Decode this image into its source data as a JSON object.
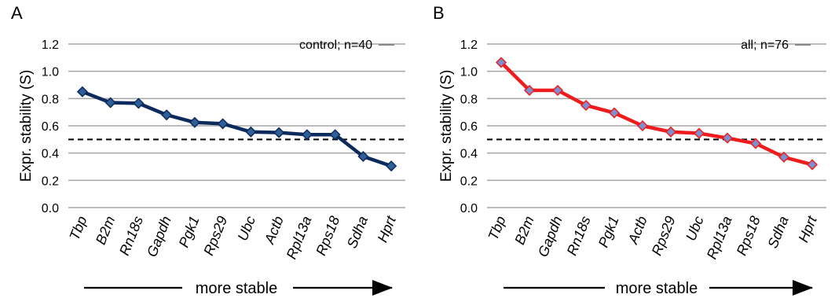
{
  "chart_data": [
    {
      "panel": "A",
      "type": "line",
      "ylabel": "Expr. stability (S)",
      "ylim": [
        0,
        1.2
      ],
      "yticks": [
        "0.0",
        "0.2",
        "0.4",
        "0.6",
        "0.8",
        "1.0",
        "1.2"
      ],
      "grid": true,
      "legend_text": "control; n=40",
      "legend_position": "top-right",
      "threshold": 0.5,
      "categories": [
        "Tbp",
        "B2m",
        "Rn18s",
        "Gapdh",
        "Pgk1",
        "Rps29",
        "Ubc",
        "Actb",
        "Rpl13a",
        "Rps18",
        "Sdha",
        "Hprt"
      ],
      "series": [
        {
          "values": [
            0.85,
            0.77,
            0.765,
            0.68,
            0.625,
            0.615,
            0.555,
            0.55,
            0.535,
            0.535,
            0.375,
            0.305
          ]
        }
      ],
      "line_color": "#0d2a5c",
      "marker_fill": "#2f5f97",
      "arrow_label": "more stable"
    },
    {
      "panel": "B",
      "type": "line",
      "ylabel": "Expr. stability (S)",
      "ylim": [
        0,
        1.2
      ],
      "yticks": [
        "0.0",
        "0.2",
        "0.4",
        "0.6",
        "0.8",
        "1.0",
        "1.2"
      ],
      "grid": true,
      "legend_text": "all; n=76",
      "legend_position": "top-right",
      "threshold": 0.5,
      "categories": [
        "Tbp",
        "B2m",
        "Gapdh",
        "Rn18s",
        "Pgk1",
        "Actb",
        "Rps29",
        "Ubc",
        "Rpl13a",
        "Rps18",
        "Sdha",
        "Hprt"
      ],
      "series": [
        {
          "values": [
            1.065,
            0.86,
            0.86,
            0.75,
            0.695,
            0.6,
            0.555,
            0.545,
            0.51,
            0.47,
            0.37,
            0.315
          ]
        }
      ],
      "line_color": "#ee1c1c",
      "marker_fill": "#7e8fd0",
      "arrow_label": "more stable"
    }
  ]
}
